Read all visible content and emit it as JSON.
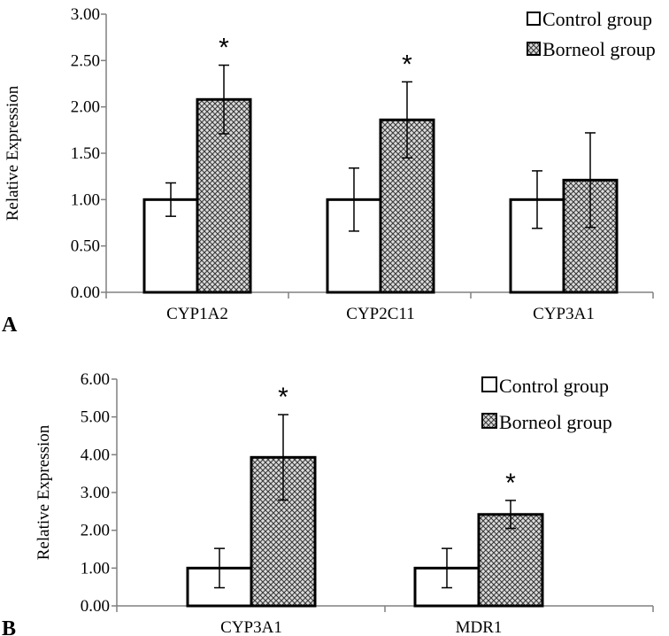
{
  "chart_data": [
    {
      "type": "bar",
      "panel_label": "A",
      "ylabel": "Relative Expression",
      "ylim": [
        0,
        3
      ],
      "yticks": [
        "0.00",
        "0.50",
        "1.00",
        "1.50",
        "2.00",
        "2.50",
        "3.00"
      ],
      "categories": [
        "CYP1A2",
        "CYP2C11",
        "CYP3A1"
      ],
      "series": [
        {
          "name": "Control group",
          "values": [
            1.0,
            1.0,
            1.0
          ],
          "errors": [
            0.18,
            0.34,
            0.31
          ],
          "pattern": "white"
        },
        {
          "name": "Borneol group",
          "values": [
            2.08,
            1.86,
            1.21
          ],
          "errors": [
            0.37,
            0.41,
            0.51
          ],
          "pattern": "crosshatch"
        }
      ],
      "significance": [
        "*",
        "*",
        ""
      ],
      "legend": {
        "placement": "top-right",
        "entries": [
          "Control group",
          "Borneol group"
        ]
      }
    },
    {
      "type": "bar",
      "panel_label": "B",
      "ylabel": "Relative Expression",
      "ylim": [
        0,
        6
      ],
      "yticks": [
        "0.00",
        "1.00",
        "2.00",
        "3.00",
        "4.00",
        "5.00",
        "6.00"
      ],
      "categories": [
        "CYP3A1",
        "MDR1"
      ],
      "series": [
        {
          "name": "Control group",
          "values": [
            1.0,
            1.0
          ],
          "errors": [
            0.52,
            0.52
          ],
          "pattern": "white"
        },
        {
          "name": "Borneol group",
          "values": [
            3.93,
            2.42
          ],
          "errors": [
            1.13,
            0.37
          ],
          "pattern": "crosshatch"
        }
      ],
      "significance": [
        "*",
        "*"
      ],
      "legend": {
        "placement": "top-right",
        "entries": [
          "Control group",
          "Borneol group"
        ]
      }
    }
  ]
}
